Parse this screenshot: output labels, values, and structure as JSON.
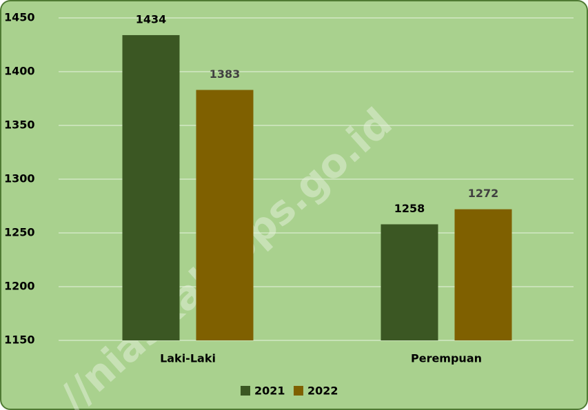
{
  "chart_data": {
    "type": "bar",
    "categories": [
      "Laki-Laki",
      "Perempuan"
    ],
    "series": [
      {
        "name": "2021",
        "color": "#3b5723",
        "values": [
          1434,
          1258
        ]
      },
      {
        "name": "2022",
        "color": "#7f6000",
        "values": [
          1383,
          1272
        ]
      }
    ],
    "ylim": [
      1150,
      1450
    ],
    "yticks": [
      1150,
      1200,
      1250,
      1300,
      1350,
      1400,
      1450
    ],
    "grid": true,
    "legend": "bottom",
    "watermark": "//niaskab.bps.go.id"
  }
}
